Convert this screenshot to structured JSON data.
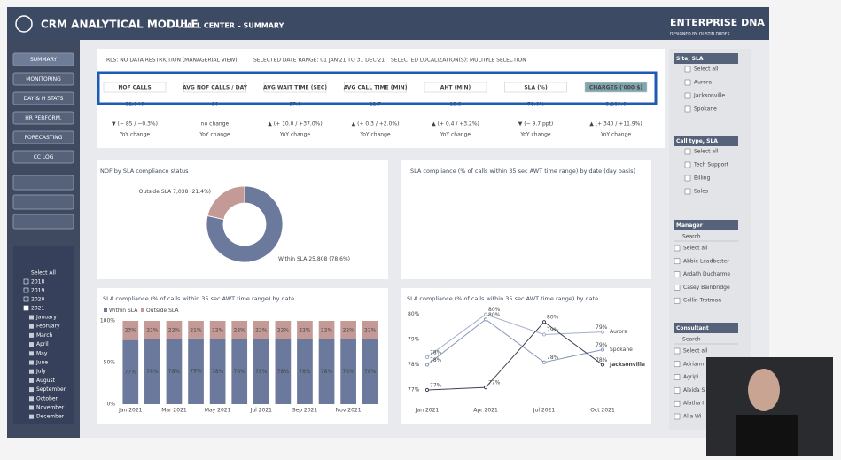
{
  "header": {
    "title": "CRM ANALYTICAL MODULE",
    "subtitle": "– CALL CENTER – SUMMARY",
    "brand": "ENTERPRISE DNA",
    "designer": "DESIGNED BY: DUSTIN DUDEK"
  },
  "nav": [
    "SUMMARY",
    "MONITORING",
    "DAY & H STATS",
    "HR PERFORM.",
    "FORECASTING",
    "CC LOG"
  ],
  "date_tree": {
    "select_all": "Select All",
    "years": [
      "2018",
      "2019",
      "2020",
      "2021"
    ],
    "months": [
      "January",
      "February",
      "March",
      "April",
      "May",
      "June",
      "July",
      "August",
      "September",
      "October",
      "November",
      "December"
    ]
  },
  "info": [
    "RLS: NO DATA RESTRICTION (MANAGERIAL VIEW)",
    "SELECTED DATE RANGE: 01 JAN'21 TO 31 DEC'21",
    "SELECTED LOCALIZATION(S): MULTIPLE SELECTION"
  ],
  "kpis": [
    {
      "label": "NOF CALLS",
      "value": "32,846",
      "change": "▼ (− 85 / −0.3%)",
      "note": "YoY change"
    },
    {
      "label": "AVG NOF CALLS / DAY",
      "value": "90",
      "change": "no change",
      "note": "YoY change"
    },
    {
      "label": "AVG WAIT TIME (SEC)",
      "value": "37.0",
      "change": "▲ (+ 10.0 / +37.0%)",
      "note": "YoY change"
    },
    {
      "label": "AVG CALL TIME (MIN)",
      "value": "12.7",
      "change": "▲ (+ 0.3 / +2.0%)",
      "note": "YoY change"
    },
    {
      "label": "AHT (MIN)",
      "value": "13.3",
      "change": "▲ (+ 0.4 / +3.2%)",
      "note": "YoY change"
    },
    {
      "label": "SLA (%)",
      "value": "78.6%",
      "change": "▼ (− 9.7 ppt)",
      "note": "YoY change"
    },
    {
      "label": "CHARGES ('000 $)",
      "value": "3,189.6",
      "change": "▲ (+ 340 / +11.9%)",
      "note": "YoY change"
    }
  ],
  "donut": {
    "title": "NOF by SLA compliance status",
    "slices": [
      {
        "name": "Within SLA",
        "value": 25808,
        "value_label": "25,808",
        "share_label": "(78.6%)",
        "color": "#6b7a9c"
      },
      {
        "name": "Outside SLA",
        "value": 7038,
        "value_label": "7,038",
        "share_label": "(21.4%)",
        "color": "#c39a96"
      }
    ]
  },
  "daily": {
    "title": "SLA compliance (% of calls within 35 sec AWT time range) by date (day basis)"
  },
  "bars": {
    "title": "SLA compliance (% of calls within 35 sec AWT time range) by date",
    "categories": [
      "Jan 2021",
      null,
      "Mar 2021",
      null,
      "May 2021",
      null,
      "Jul 2021",
      null,
      "Sep 2021",
      null,
      "Nov 2021",
      null
    ],
    "series": [
      {
        "name": "Within SLA",
        "color": "#6b7a9c",
        "values": [
          77,
          78,
          78,
          79,
          78,
          78,
          78,
          78,
          78,
          78,
          78,
          78
        ],
        "value_labels": [
          "77%",
          "78%",
          "78%",
          "79%",
          "78%",
          "78%",
          "78%",
          "78%",
          "78%",
          "78%",
          "78%",
          "78%"
        ]
      },
      {
        "name": "Outside SLA",
        "color": "#c39a96",
        "values": [
          23,
          22,
          22,
          21,
          22,
          22,
          22,
          22,
          22,
          22,
          22,
          22
        ],
        "value_labels": [
          "23%",
          "22%",
          "22%",
          "21%",
          "22%",
          "22%",
          "22%",
          "22%",
          "22%",
          "22%",
          "22%",
          "22%"
        ]
      }
    ],
    "ylim": [
      0,
      100
    ],
    "yticks": [
      {
        "value": 0,
        "label": "0%"
      },
      {
        "value": 50,
        "label": "50%"
      },
      {
        "value": 100,
        "label": "100%"
      }
    ]
  },
  "lines": {
    "title": "SLA compliance (% of calls within 35 sec AWT time range) by date",
    "x": [
      "Jan 2021",
      "Apr 2021",
      "Jul 2021",
      "Oct 2021"
    ],
    "series": [
      {
        "name": "Aurora",
        "color": "#a3aecb",
        "values": [
          78.3,
          80.0,
          79.2,
          79.3
        ],
        "value_labels": [
          "78%",
          "80%",
          "79%",
          "79%"
        ]
      },
      {
        "name": "Spokane",
        "color": "#8796bb",
        "values": [
          78.0,
          79.8,
          78.1,
          78.6
        ],
        "value_labels": [
          "78%",
          "80%",
          "78%",
          "79%"
        ]
      },
      {
        "name": "Jacksonville",
        "color": "#3b4458",
        "values": [
          77.0,
          77.1,
          79.7,
          78.0
        ],
        "value_labels": [
          "77%",
          "77%",
          "80%",
          "78%"
        ]
      }
    ],
    "ylim": [
      76.9,
      80.1
    ],
    "yticks": [
      {
        "value": 77,
        "label": "77%"
      },
      {
        "value": 78,
        "label": "78%"
      },
      {
        "value": 79,
        "label": "79%"
      },
      {
        "value": 80,
        "label": "80%"
      }
    ]
  },
  "filters": [
    {
      "title": "Site, SLA",
      "items": [
        "Select all",
        "Aurora",
        "Jacksonville",
        "Spokane"
      ]
    },
    {
      "title": "Call type, SLA",
      "items": [
        "Select all",
        "Tech Support",
        "Billing",
        "Sales"
      ]
    },
    {
      "title": "Manager",
      "search": "Search",
      "items": [
        "Select all",
        "Abbie Leadbetter",
        "Ardath Ducharme",
        "Casey Bainbridge",
        "Collin Trotman"
      ]
    },
    {
      "title": "Consultant",
      "search": "Search",
      "items": [
        "Select all",
        "Adriann",
        "Agripi",
        "Aleida S",
        "Alatha I",
        "Alla Wi"
      ]
    }
  ]
}
